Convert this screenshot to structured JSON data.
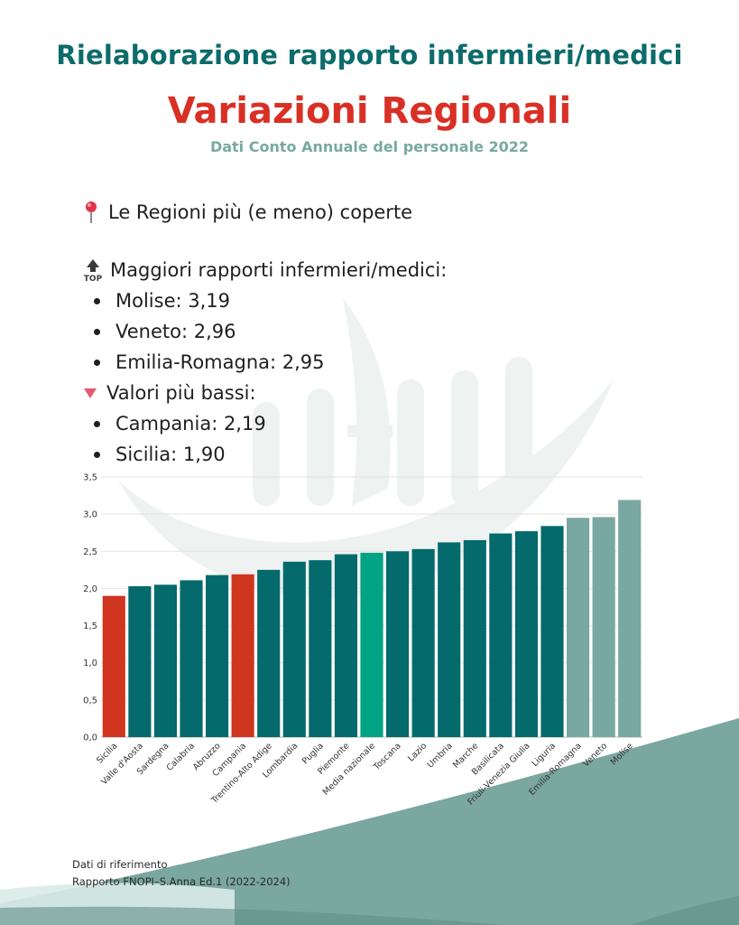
{
  "header": {
    "title_top": "Rielaborazione rapporto infermieri/medici",
    "title_main": "Variazioni Regionali",
    "subtitle": "Dati Conto Annuale del personale 2022"
  },
  "summary": {
    "intro": "Le Regioni più (e meno) coperte",
    "intro_icon": "pin-icon",
    "top_heading": "Maggiori rapporti infermieri/medici:",
    "top_icon": "top-icon",
    "top_items": [
      "Molise: 3,19",
      "Veneto: 2,96",
      "Emilia-Romagna: 2,95"
    ],
    "low_heading": "Valori più bassi:",
    "low_icon": "down-triangle-icon",
    "low_items": [
      "Campania: 2,19",
      "Sicilia: 1,90"
    ]
  },
  "chart_data": {
    "type": "bar",
    "title": "",
    "xlabel": "",
    "ylabel": "",
    "ylim": [
      0,
      3.5
    ],
    "yticks": [
      "0,0",
      "0,5",
      "1,0",
      "1,5",
      "2,0",
      "2,5",
      "3,0",
      "3,5"
    ],
    "grid": true,
    "categories": [
      "Sicilia",
      "Valle d'Aosta",
      "Sardegna",
      "Calabria",
      "Abruzzo",
      "Campania",
      "Trentino-Alto Adige",
      "Lombardia",
      "Puglia",
      "Piemonte",
      "Media nazionale",
      "Toscana",
      "Lazio",
      "Umbria",
      "Marche",
      "Basilicata",
      "Friuli-Venezia Giulia",
      "Liguria",
      "Emilia-Romagna",
      "Veneto",
      "Molise"
    ],
    "values": [
      1.9,
      2.03,
      2.05,
      2.11,
      2.18,
      2.19,
      2.25,
      2.36,
      2.38,
      2.46,
      2.48,
      2.5,
      2.53,
      2.62,
      2.65,
      2.74,
      2.77,
      2.84,
      2.95,
      2.96,
      3.19
    ],
    "colors": {
      "lowest": "#d0351f",
      "normal": "#046a6c",
      "national": "#00a383",
      "highest": "#78a8a1"
    },
    "bar_groups": [
      "lowest",
      "normal",
      "normal",
      "normal",
      "normal",
      "lowest",
      "normal",
      "normal",
      "normal",
      "normal",
      "national",
      "normal",
      "normal",
      "normal",
      "normal",
      "normal",
      "normal",
      "normal",
      "highest",
      "highest",
      "highest"
    ]
  },
  "footer": {
    "line1": "Dati di riferimento",
    "line2": "Rapporto FNOPI–S.Anna Ed.1 (2022-2024)"
  }
}
